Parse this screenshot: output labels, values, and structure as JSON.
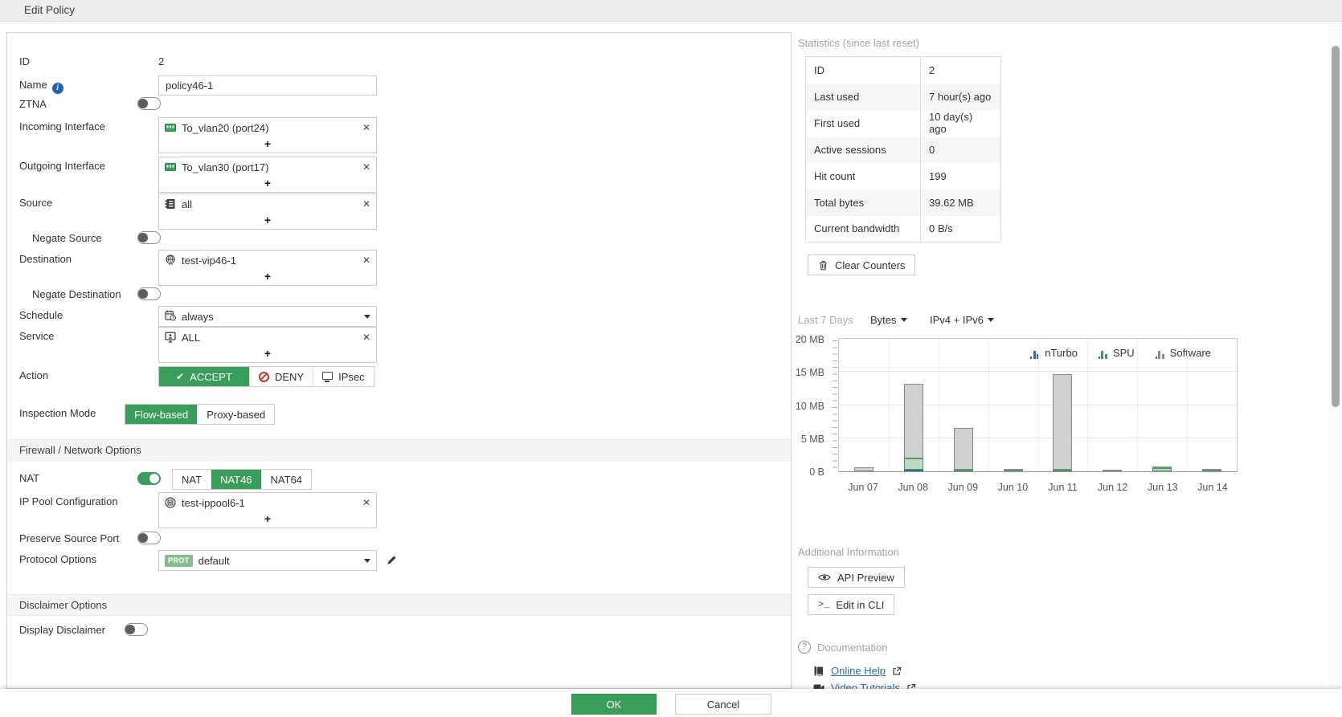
{
  "titlebar": {
    "title": "Edit Policy"
  },
  "symbols": {
    "remove": "✕",
    "add": "+",
    "info": "i",
    "check": "✔",
    "help": "?",
    "prompt": ">_"
  },
  "form": {
    "id": {
      "label": "ID",
      "value": "2"
    },
    "name": {
      "label": "Name",
      "value": "policy46-1"
    },
    "ztna": {
      "label": "ZTNA",
      "on": false
    },
    "incoming": {
      "label": "Incoming Interface",
      "entries": [
        "To_vlan20 (port24)"
      ]
    },
    "outgoing": {
      "label": "Outgoing Interface",
      "entries": [
        "To_vlan30 (port17)"
      ]
    },
    "source": {
      "label": "Source",
      "entries": [
        "all"
      ]
    },
    "negate_source": {
      "label": "Negate Source",
      "on": false
    },
    "destination": {
      "label": "Destination",
      "entries": [
        "test-vip46-1"
      ]
    },
    "negate_destination": {
      "label": "Negate Destination",
      "on": false
    },
    "schedule": {
      "label": "Schedule",
      "value": "always"
    },
    "service": {
      "label": "Service",
      "entries": [
        "ALL"
      ]
    },
    "action": {
      "label": "Action",
      "options": [
        "ACCEPT",
        "DENY",
        "IPsec"
      ],
      "selected": "ACCEPT"
    },
    "inspection": {
      "label": "Inspection Mode",
      "options": [
        "Flow-based",
        "Proxy-based"
      ],
      "selected": "Flow-based"
    },
    "section_firewall": "Firewall / Network Options",
    "nat": {
      "label": "NAT",
      "on": true,
      "options": [
        "NAT",
        "NAT46",
        "NAT64"
      ],
      "selected": "NAT46"
    },
    "ip_pool": {
      "label": "IP Pool Configuration",
      "entries": [
        "test-ippool6-1"
      ]
    },
    "preserve_source_port": {
      "label": "Preserve Source Port",
      "on": false
    },
    "protocol_options": {
      "label": "Protocol Options",
      "badge": "PROT",
      "value": "default"
    },
    "section_disclaimer": "Disclaimer Options",
    "display_disclaimer": {
      "label": "Display Disclaimer",
      "on": false
    }
  },
  "stats": {
    "heading": "Statistics (since last reset)",
    "rows": [
      [
        "ID",
        "2"
      ],
      [
        "Last used",
        "7 hour(s) ago"
      ],
      [
        "First used",
        "10 day(s) ago"
      ],
      [
        "Active sessions",
        "0"
      ],
      [
        "Hit count",
        "199"
      ],
      [
        "Total bytes",
        "39.62 MB"
      ],
      [
        "Current bandwidth",
        "0 B/s"
      ]
    ],
    "clear_button": "Clear Counters"
  },
  "chart_header": {
    "range": "Last 7 Days",
    "unit": "Bytes",
    "family": "IPv4 + IPv6"
  },
  "chart_data": {
    "type": "bar",
    "stacked": true,
    "title": "Last 7 Days",
    "unit": "bytes",
    "categories": [
      "Jun 07",
      "Jun 08",
      "Jun 09",
      "Jun 10",
      "Jun 11",
      "Jun 12",
      "Jun 13",
      "Jun 14"
    ],
    "series": [
      {
        "name": "nTurbo",
        "color": "#35689b",
        "fill": "#7da7cc",
        "values_mb": [
          0,
          0.2,
          0,
          0,
          0,
          0,
          0,
          0
        ]
      },
      {
        "name": "SPU",
        "color": "#3a9e5a",
        "fill": "#b9dcc3",
        "values_mb": [
          0,
          1.8,
          0.2,
          0.12,
          0.3,
          0,
          0.5,
          0.1
        ]
      },
      {
        "name": "Software",
        "color": "#8a8a8a",
        "fill": "#d0d0d0",
        "values_mb": [
          0.55,
          11.2,
          6.3,
          0.05,
          14.4,
          0.15,
          0.05,
          0.05
        ]
      }
    ],
    "ylim_mb": [
      0,
      20
    ],
    "yticks": [
      {
        "mb": 0,
        "label": "0 B"
      },
      {
        "mb": 5,
        "label": "5 MB"
      },
      {
        "mb": 10,
        "label": "10 MB"
      },
      {
        "mb": 15,
        "label": "15 MB"
      },
      {
        "mb": 20,
        "label": "20 MB"
      }
    ],
    "legend_position": "top-right",
    "grid": true
  },
  "additional": {
    "heading": "Additional Information",
    "api_preview": "API Preview",
    "edit_cli": "Edit in CLI"
  },
  "docs": {
    "heading": "Documentation",
    "online_help": "Online Help",
    "video_tutorials": "Video Tutorials"
  },
  "footer": {
    "ok": "OK",
    "cancel": "Cancel"
  }
}
